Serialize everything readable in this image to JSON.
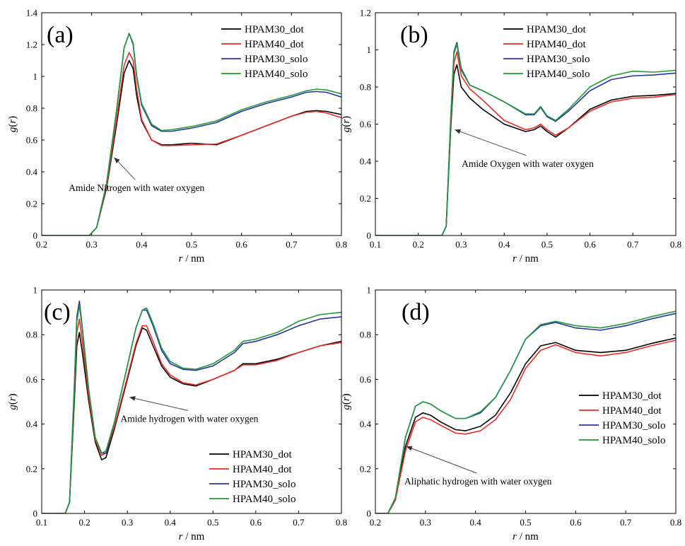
{
  "colors": {
    "HPAM30_dot": "#000000",
    "HPAM40_dot": "#ee2a24",
    "HPAM30_solo": "#2b35a0",
    "HPAM40_solo": "#1e9a3a"
  },
  "chart_data": [
    {
      "type": "line",
      "panel_label": "(a)",
      "xlabel": "r / nm",
      "ylabel": "g(r)",
      "xlim": [
        0.2,
        0.8
      ],
      "ylim": [
        0,
        1.4
      ],
      "xticks": [
        0.2,
        0.3,
        0.4,
        0.5,
        0.6,
        0.7,
        0.8
      ],
      "xtick_labels": [
        "0.2",
        "0.3",
        "0.4",
        "0.5",
        "0.6",
        "0.7",
        "0.8"
      ],
      "yticks": [
        0,
        0.2,
        0.4,
        0.6,
        0.8,
        1,
        1.2,
        1.4
      ],
      "ytick_labels": [
        "0",
        "0.2",
        "0.4",
        "0.6",
        "0.8",
        "1",
        "1.2",
        "1.4"
      ],
      "legend_position": "top-right",
      "annotation": {
        "text": "Amide Nitrogen with water oxygen",
        "point": [
          0.345,
          0.49
        ],
        "text_at": [
          0.39,
          0.28
        ]
      },
      "series": [
        {
          "name": "HPAM30_dot",
          "x": [
            0.2,
            0.295,
            0.31,
            0.33,
            0.35,
            0.365,
            0.375,
            0.383,
            0.39,
            0.4,
            0.42,
            0.44,
            0.46,
            0.5,
            0.55,
            0.6,
            0.65,
            0.7,
            0.73,
            0.75,
            0.77,
            0.8
          ],
          "y": [
            0,
            0,
            0.05,
            0.3,
            0.7,
            1.02,
            1.1,
            1.05,
            0.88,
            0.72,
            0.6,
            0.57,
            0.57,
            0.58,
            0.57,
            0.63,
            0.69,
            0.75,
            0.78,
            0.785,
            0.78,
            0.76
          ]
        },
        {
          "name": "HPAM40_dot",
          "x": [
            0.2,
            0.295,
            0.31,
            0.33,
            0.35,
            0.365,
            0.375,
            0.383,
            0.39,
            0.4,
            0.42,
            0.44,
            0.46,
            0.5,
            0.55,
            0.6,
            0.65,
            0.7,
            0.73,
            0.75,
            0.77,
            0.8
          ],
          "y": [
            0,
            0,
            0.05,
            0.31,
            0.73,
            1.07,
            1.15,
            1.1,
            0.92,
            0.73,
            0.6,
            0.565,
            0.565,
            0.57,
            0.575,
            0.63,
            0.69,
            0.75,
            0.775,
            0.78,
            0.77,
            0.74
          ]
        },
        {
          "name": "HPAM30_solo",
          "x": [
            0.2,
            0.295,
            0.31,
            0.33,
            0.35,
            0.365,
            0.375,
            0.383,
            0.39,
            0.4,
            0.42,
            0.44,
            0.46,
            0.5,
            0.55,
            0.6,
            0.65,
            0.7,
            0.73,
            0.75,
            0.77,
            0.8
          ],
          "y": [
            0,
            0,
            0.05,
            0.33,
            0.79,
            1.18,
            1.27,
            1.2,
            1.0,
            0.82,
            0.69,
            0.655,
            0.655,
            0.675,
            0.71,
            0.78,
            0.83,
            0.87,
            0.9,
            0.905,
            0.9,
            0.87
          ]
        },
        {
          "name": "HPAM40_solo",
          "x": [
            0.2,
            0.295,
            0.31,
            0.33,
            0.35,
            0.365,
            0.375,
            0.383,
            0.39,
            0.4,
            0.42,
            0.44,
            0.46,
            0.5,
            0.55,
            0.6,
            0.65,
            0.7,
            0.73,
            0.75,
            0.77,
            0.8
          ],
          "y": [
            0,
            0,
            0.05,
            0.33,
            0.79,
            1.18,
            1.27,
            1.21,
            1.01,
            0.83,
            0.7,
            0.66,
            0.665,
            0.685,
            0.72,
            0.79,
            0.84,
            0.88,
            0.91,
            0.92,
            0.915,
            0.89
          ]
        }
      ]
    },
    {
      "type": "line",
      "panel_label": "(b)",
      "xlabel": "r / nm",
      "ylabel": "g(r)",
      "xlim": [
        0.1,
        0.8
      ],
      "ylim": [
        0,
        1.2
      ],
      "xticks": [
        0.1,
        0.2,
        0.3,
        0.4,
        0.5,
        0.6,
        0.7,
        0.8
      ],
      "xtick_labels": [
        "0.1",
        "0.2",
        "0.3",
        "0.4",
        "0.5",
        "0.6",
        "0.7",
        "0.8"
      ],
      "yticks": [
        0,
        0.2,
        0.4,
        0.6,
        0.8,
        1,
        1.2
      ],
      "ytick_labels": [
        "0",
        "0.2",
        "0.4",
        "0.6",
        "0.8",
        "1",
        "1.2"
      ],
      "legend_position": "top-right",
      "annotation": {
        "text": "Amide Oxygen with water oxygen",
        "point": [
          0.285,
          0.57
        ],
        "text_at": [
          0.455,
          0.37
        ]
      },
      "series": [
        {
          "name": "HPAM30_dot",
          "x": [
            0.1,
            0.255,
            0.265,
            0.275,
            0.283,
            0.29,
            0.3,
            0.32,
            0.35,
            0.4,
            0.45,
            0.47,
            0.485,
            0.5,
            0.52,
            0.55,
            0.6,
            0.65,
            0.7,
            0.75,
            0.8
          ],
          "y": [
            0,
            0,
            0.05,
            0.55,
            0.87,
            0.92,
            0.8,
            0.74,
            0.68,
            0.6,
            0.56,
            0.57,
            0.59,
            0.56,
            0.53,
            0.58,
            0.68,
            0.73,
            0.75,
            0.755,
            0.765
          ]
        },
        {
          "name": "HPAM40_dot",
          "x": [
            0.1,
            0.255,
            0.265,
            0.275,
            0.283,
            0.29,
            0.3,
            0.32,
            0.35,
            0.4,
            0.45,
            0.47,
            0.485,
            0.5,
            0.52,
            0.55,
            0.6,
            0.65,
            0.7,
            0.75,
            0.8
          ],
          "y": [
            0,
            0,
            0.05,
            0.57,
            0.93,
            0.99,
            0.86,
            0.79,
            0.73,
            0.62,
            0.57,
            0.58,
            0.6,
            0.57,
            0.54,
            0.58,
            0.67,
            0.72,
            0.74,
            0.745,
            0.76
          ]
        },
        {
          "name": "HPAM30_solo",
          "x": [
            0.1,
            0.255,
            0.265,
            0.275,
            0.283,
            0.29,
            0.3,
            0.32,
            0.35,
            0.4,
            0.45,
            0.47,
            0.485,
            0.5,
            0.52,
            0.55,
            0.6,
            0.65,
            0.7,
            0.75,
            0.8
          ],
          "y": [
            0,
            0,
            0.05,
            0.6,
            0.99,
            1.04,
            0.9,
            0.81,
            0.78,
            0.72,
            0.65,
            0.65,
            0.69,
            0.64,
            0.615,
            0.67,
            0.78,
            0.84,
            0.86,
            0.865,
            0.875
          ]
        },
        {
          "name": "HPAM40_solo",
          "x": [
            0.1,
            0.255,
            0.265,
            0.275,
            0.283,
            0.29,
            0.3,
            0.32,
            0.35,
            0.4,
            0.45,
            0.47,
            0.485,
            0.5,
            0.52,
            0.55,
            0.6,
            0.65,
            0.7,
            0.75,
            0.8
          ],
          "y": [
            0,
            0,
            0.05,
            0.6,
            0.98,
            1.03,
            0.89,
            0.81,
            0.78,
            0.72,
            0.655,
            0.655,
            0.695,
            0.645,
            0.62,
            0.68,
            0.8,
            0.86,
            0.885,
            0.88,
            0.89
          ]
        }
      ]
    },
    {
      "type": "line",
      "panel_label": "(c)",
      "xlabel": "r / nm",
      "ylabel": "g(r)",
      "xlim": [
        0.1,
        0.8
      ],
      "ylim": [
        0,
        1
      ],
      "xticks": [
        0.1,
        0.2,
        0.3,
        0.4,
        0.5,
        0.6,
        0.7,
        0.8
      ],
      "xtick_labels": [
        "0.1",
        "0.2",
        "0.3",
        "0.4",
        "0.5",
        "0.6",
        "0.7",
        "0.8"
      ],
      "yticks": [
        0,
        0.2,
        0.4,
        0.6,
        0.8,
        1
      ],
      "ytick_labels": [
        "0",
        "0.2",
        "0.4",
        "0.6",
        "0.8",
        "1"
      ],
      "legend_position": "bottom-right",
      "annotation": {
        "text": "Amide hydrogen with water oxygen",
        "point": [
          0.305,
          0.52
        ],
        "text_at": [
          0.445,
          0.41
        ]
      },
      "series": [
        {
          "name": "HPAM30_dot",
          "x": [
            0.1,
            0.155,
            0.165,
            0.175,
            0.182,
            0.188,
            0.195,
            0.21,
            0.225,
            0.24,
            0.25,
            0.27,
            0.3,
            0.32,
            0.335,
            0.345,
            0.36,
            0.38,
            0.4,
            0.43,
            0.46,
            0.5,
            0.55,
            0.57,
            0.6,
            0.65,
            0.7,
            0.75,
            0.8
          ],
          "y": [
            0,
            0,
            0.05,
            0.45,
            0.75,
            0.81,
            0.72,
            0.5,
            0.32,
            0.24,
            0.25,
            0.38,
            0.6,
            0.75,
            0.83,
            0.82,
            0.75,
            0.66,
            0.61,
            0.58,
            0.57,
            0.6,
            0.64,
            0.67,
            0.67,
            0.69,
            0.72,
            0.75,
            0.77
          ]
        },
        {
          "name": "HPAM40_dot",
          "x": [
            0.1,
            0.155,
            0.165,
            0.175,
            0.182,
            0.188,
            0.195,
            0.21,
            0.225,
            0.24,
            0.25,
            0.27,
            0.3,
            0.32,
            0.335,
            0.345,
            0.36,
            0.38,
            0.4,
            0.43,
            0.46,
            0.5,
            0.55,
            0.57,
            0.6,
            0.65,
            0.7,
            0.75,
            0.8
          ],
          "y": [
            0,
            0,
            0.05,
            0.48,
            0.81,
            0.87,
            0.77,
            0.52,
            0.33,
            0.26,
            0.27,
            0.39,
            0.61,
            0.76,
            0.84,
            0.84,
            0.77,
            0.67,
            0.62,
            0.585,
            0.575,
            0.6,
            0.64,
            0.665,
            0.665,
            0.685,
            0.72,
            0.75,
            0.765
          ]
        },
        {
          "name": "HPAM30_solo",
          "x": [
            0.1,
            0.155,
            0.165,
            0.175,
            0.182,
            0.188,
            0.195,
            0.21,
            0.225,
            0.24,
            0.25,
            0.27,
            0.3,
            0.32,
            0.335,
            0.345,
            0.36,
            0.38,
            0.4,
            0.43,
            0.46,
            0.5,
            0.55,
            0.57,
            0.6,
            0.65,
            0.7,
            0.75,
            0.8
          ],
          "y": [
            0,
            0,
            0.05,
            0.52,
            0.88,
            0.95,
            0.83,
            0.55,
            0.34,
            0.27,
            0.27,
            0.41,
            0.66,
            0.83,
            0.91,
            0.91,
            0.84,
            0.73,
            0.67,
            0.645,
            0.64,
            0.66,
            0.72,
            0.76,
            0.77,
            0.8,
            0.84,
            0.87,
            0.88
          ]
        },
        {
          "name": "HPAM40_solo",
          "x": [
            0.1,
            0.155,
            0.165,
            0.175,
            0.182,
            0.188,
            0.195,
            0.21,
            0.225,
            0.24,
            0.25,
            0.27,
            0.3,
            0.32,
            0.335,
            0.345,
            0.36,
            0.38,
            0.4,
            0.43,
            0.46,
            0.5,
            0.55,
            0.57,
            0.6,
            0.65,
            0.7,
            0.75,
            0.8
          ],
          "y": [
            0,
            0,
            0.05,
            0.5,
            0.86,
            0.93,
            0.82,
            0.55,
            0.34,
            0.27,
            0.28,
            0.41,
            0.66,
            0.83,
            0.91,
            0.92,
            0.85,
            0.74,
            0.68,
            0.65,
            0.645,
            0.67,
            0.73,
            0.77,
            0.78,
            0.81,
            0.86,
            0.89,
            0.9
          ]
        }
      ]
    },
    {
      "type": "line",
      "panel_label": "(d)",
      "xlabel": "r / nm",
      "ylabel": "g(r)",
      "xlim": [
        0.2,
        0.8
      ],
      "ylim": [
        0,
        1
      ],
      "xticks": [
        0.2,
        0.3,
        0.4,
        0.5,
        0.6,
        0.7,
        0.8
      ],
      "xtick_labels": [
        "0.2",
        "0.3",
        "0.4",
        "0.5",
        "0.6",
        "0.7",
        "0.8"
      ],
      "yticks": [
        0,
        0.2,
        0.4,
        0.6,
        0.8,
        1
      ],
      "ytick_labels": [
        "0",
        "0.2",
        "0.4",
        "0.6",
        "0.8",
        "1"
      ],
      "legend_position": "right",
      "annotation": {
        "text": "Aliphatic hydrogen with water oxygen",
        "point": [
          0.262,
          0.3
        ],
        "text_at": [
          0.405,
          0.13
        ]
      },
      "series": [
        {
          "name": "HPAM30_dot",
          "x": [
            0.2,
            0.225,
            0.24,
            0.26,
            0.28,
            0.295,
            0.31,
            0.33,
            0.36,
            0.38,
            0.41,
            0.44,
            0.47,
            0.5,
            0.53,
            0.56,
            0.6,
            0.65,
            0.7,
            0.75,
            0.8
          ],
          "y": [
            0,
            0,
            0.06,
            0.3,
            0.43,
            0.45,
            0.44,
            0.41,
            0.375,
            0.37,
            0.39,
            0.44,
            0.54,
            0.67,
            0.75,
            0.765,
            0.73,
            0.72,
            0.73,
            0.76,
            0.785
          ]
        },
        {
          "name": "HPAM40_dot",
          "x": [
            0.2,
            0.225,
            0.24,
            0.26,
            0.28,
            0.295,
            0.31,
            0.33,
            0.36,
            0.38,
            0.41,
            0.44,
            0.47,
            0.5,
            0.53,
            0.56,
            0.6,
            0.65,
            0.7,
            0.75,
            0.8
          ],
          "y": [
            0,
            0,
            0.06,
            0.28,
            0.41,
            0.43,
            0.42,
            0.395,
            0.36,
            0.355,
            0.37,
            0.42,
            0.51,
            0.65,
            0.73,
            0.755,
            0.72,
            0.705,
            0.72,
            0.75,
            0.775
          ]
        },
        {
          "name": "HPAM30_solo",
          "x": [
            0.2,
            0.225,
            0.24,
            0.26,
            0.28,
            0.295,
            0.31,
            0.33,
            0.36,
            0.38,
            0.41,
            0.44,
            0.47,
            0.5,
            0.53,
            0.56,
            0.6,
            0.65,
            0.7,
            0.75,
            0.8
          ],
          "y": [
            0,
            0,
            0.07,
            0.34,
            0.48,
            0.5,
            0.49,
            0.46,
            0.425,
            0.425,
            0.45,
            0.52,
            0.64,
            0.78,
            0.84,
            0.855,
            0.83,
            0.82,
            0.84,
            0.87,
            0.895
          ]
        },
        {
          "name": "HPAM40_solo",
          "x": [
            0.2,
            0.225,
            0.24,
            0.26,
            0.28,
            0.295,
            0.31,
            0.33,
            0.36,
            0.38,
            0.41,
            0.44,
            0.47,
            0.5,
            0.53,
            0.56,
            0.6,
            0.65,
            0.7,
            0.75,
            0.8
          ],
          "y": [
            0,
            0,
            0.07,
            0.34,
            0.48,
            0.5,
            0.49,
            0.46,
            0.425,
            0.425,
            0.455,
            0.52,
            0.64,
            0.78,
            0.845,
            0.86,
            0.84,
            0.83,
            0.85,
            0.88,
            0.905
          ]
        }
      ]
    }
  ]
}
